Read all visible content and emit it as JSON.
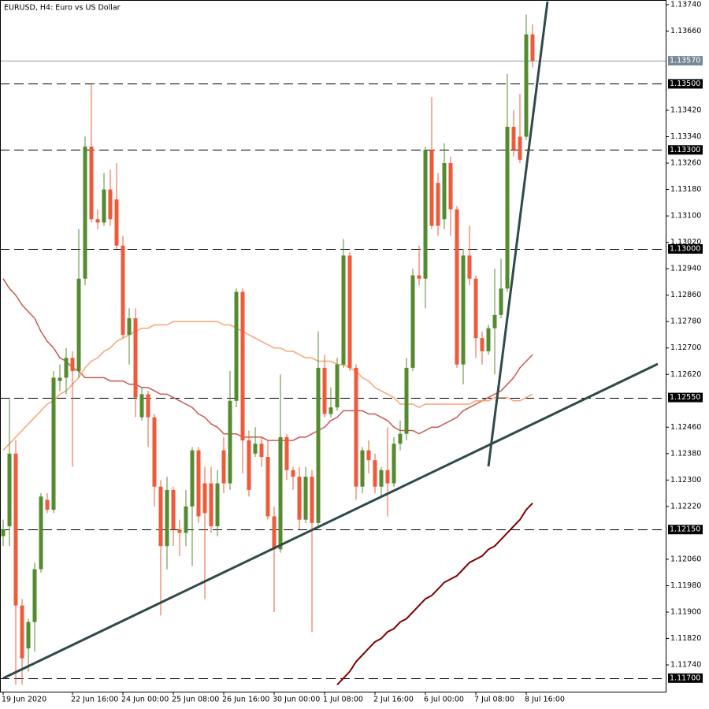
{
  "chart_data": {
    "type": "candlestick",
    "title": "EURUSD, H4:  Euro vs US Dollar",
    "categories": [
      "19 Jun 2020",
      null,
      null,
      null,
      null,
      null,
      null,
      null,
      null,
      null,
      null,
      "22 Jun 16:00",
      null,
      null,
      null,
      null,
      null,
      null,
      null,
      "24 Jun 00:00",
      null,
      null,
      null,
      null,
      null,
      null,
      null,
      "25 Jun 08:00",
      null,
      null,
      null,
      null,
      null,
      null,
      null,
      "26 Jun 16:00",
      null,
      null,
      null,
      null,
      null,
      null,
      null,
      "30 Jun 00:00",
      null,
      null,
      null,
      null,
      null,
      null,
      null,
      "1 Jul 08:00",
      null,
      null,
      null,
      null,
      null,
      null,
      null,
      "2 Jul 16:00",
      null,
      null,
      null,
      null,
      null,
      null,
      null,
      "6 Jul 00:00",
      null,
      null,
      null,
      null,
      null,
      null,
      null,
      "7 Jul 08:00",
      null,
      null,
      null,
      null,
      null,
      null,
      null,
      "8 Jul 16:00",
      null
    ],
    "open": [
      1.1213,
      1.1216,
      1.1238,
      1.1192,
      1.1179,
      1.1187,
      1.1203,
      1.1224,
      1.1221,
      1.126,
      1.1261,
      1.1267,
      1.1263,
      1.1291,
      1.1331,
      1.1309,
      1.1308,
      1.1318,
      1.1315,
      1.1301,
      1.1274,
      1.1279,
      1.1249,
      1.1256,
      1.1249,
      1.1228,
      1.121,
      1.1227,
      1.1215,
      1.1214,
      1.1222,
      1.1239,
      1.1229,
      1.1229,
      1.1216,
      1.1239,
      1.1229,
      1.1254,
      1.1287,
      1.1242,
      1.1238,
      1.1241,
      1.1237,
      1.1219,
      1.1209,
      1.1243,
      1.1233,
      1.1231,
      1.1218,
      1.1231,
      1.1217,
      1.1264,
      1.125,
      1.1252,
      1.1265,
      1.1298,
      1.1264,
      1.1228,
      1.1239,
      1.1236,
      1.1228,
      1.1233,
      1.1229,
      1.1241,
      1.1244,
      1.1264,
      1.1292,
      1.1291,
      1.133,
      1.132,
      1.1309,
      1.1326,
      1.1312,
      1.1265,
      1.1298,
      1.1291,
      1.1273,
      1.1269,
      1.1276,
      1.128,
      1.1288,
      1.1337,
      1.1334,
      1.1334,
      1.1365
    ],
    "high": [
      1.1218,
      1.1255,
      1.1242,
      1.1194,
      1.1188,
      1.1205,
      1.1226,
      1.1226,
      1.1263,
      1.1265,
      1.127,
      1.1269,
      1.1306,
      1.1334,
      1.135,
      1.1312,
      1.1323,
      1.1324,
      1.1326,
      1.1304,
      1.1282,
      1.1282,
      1.1258,
      1.1257,
      1.125,
      1.123,
      1.1231,
      1.1228,
      1.1218,
      1.1227,
      1.124,
      1.124,
      1.1234,
      1.1234,
      1.1233,
      1.1243,
      1.1263,
      1.1288,
      1.1288,
      1.1245,
      1.1246,
      1.1243,
      1.1242,
      1.1222,
      1.1262,
      1.1244,
      1.1234,
      1.1234,
      1.1234,
      1.1233,
      1.1275,
      1.1268,
      1.1258,
      1.1267,
      1.1303,
      1.1299,
      1.1265,
      1.124,
      1.1242,
      1.1238,
      1.1234,
      1.1246,
      1.1243,
      1.1248,
      1.1267,
      1.1294,
      1.1301,
      1.1331,
      1.1346,
      1.1323,
      1.1332,
      1.1328,
      1.1313,
      1.13,
      1.1307,
      1.1292,
      1.1275,
      1.1277,
      1.1294,
      1.1297,
      1.1353,
      1.1342,
      1.1347,
      1.1371,
      1.1368
    ],
    "low": [
      1.121,
      1.121,
      1.1168,
      1.1168,
      1.1172,
      1.1178,
      1.1202,
      1.122,
      1.122,
      1.1257,
      1.1256,
      1.1234,
      1.1261,
      1.1289,
      1.1308,
      1.1306,
      1.1307,
      1.1307,
      1.13,
      1.1273,
      1.1265,
      1.1249,
      1.1248,
      1.124,
      1.1222,
      1.1189,
      1.1203,
      1.121,
      1.1207,
      1.121,
      1.1204,
      1.1217,
      1.1194,
      1.1214,
      1.1213,
      1.1226,
      1.1227,
      1.1252,
      1.1232,
      1.1225,
      1.1237,
      1.1234,
      1.1218,
      1.119,
      1.1208,
      1.123,
      1.1227,
      1.1215,
      1.1217,
      1.1184,
      1.1216,
      1.1249,
      1.1249,
      1.1251,
      1.1264,
      1.1263,
      1.1224,
      1.1226,
      1.1232,
      1.1226,
      1.1225,
      1.1219,
      1.1228,
      1.1239,
      1.1242,
      1.1263,
      1.1289,
      1.1282,
      1.1306,
      1.1304,
      1.1306,
      1.1304,
      1.1264,
      1.1259,
      1.1289,
      1.1267,
      1.1265,
      1.1268,
      1.1262,
      1.1279,
      1.1287,
      1.1328,
      1.1326,
      1.1333,
      1.1355
    ],
    "close": [
      1.1215,
      1.1238,
      1.1192,
      1.1176,
      1.1187,
      1.1203,
      1.1225,
      1.1221,
      1.1261,
      1.1261,
      1.1267,
      1.1263,
      1.1291,
      1.1331,
      1.1309,
      1.1308,
      1.1318,
      1.1309,
      1.1301,
      1.1274,
      1.1279,
      1.1255,
      1.1256,
      1.1249,
      1.1228,
      1.121,
      1.1227,
      1.1215,
      1.1214,
      1.1222,
      1.1239,
      1.1219,
      1.122,
      1.1216,
      1.1229,
      1.1229,
      1.1254,
      1.1287,
      1.1242,
      1.1227,
      1.1241,
      1.1237,
      1.1219,
      1.1209,
      1.1243,
      1.1233,
      1.1231,
      1.1218,
      1.1231,
      1.1217,
      1.1264,
      1.125,
      1.1252,
      1.1265,
      1.1298,
      1.1264,
      1.1228,
      1.1239,
      1.1236,
      1.1228,
      1.1233,
      1.1229,
      1.1241,
      1.1244,
      1.1264,
      1.1292,
      1.1291,
      1.133,
      1.1307,
      1.1307,
      1.1326,
      1.1312,
      1.1265,
      1.1298,
      1.1291,
      1.1273,
      1.1269,
      1.1276,
      1.128,
      1.1288,
      1.1337,
      1.133,
      1.1327,
      1.1365,
      1.1357
    ],
    "up_color": "#558b2f",
    "down_color": "#ef5a3a",
    "lines": [
      {
        "color": "#c55a52",
        "values": [
          1.1291,
          1.1288,
          1.1286,
          1.1283,
          1.1281,
          1.1279,
          1.1275,
          1.1272,
          1.127,
          1.1267,
          1.1266,
          1.1264,
          1.1263,
          1.1261,
          1.1261,
          1.1261,
          1.1261,
          1.126,
          1.126,
          1.126,
          1.1259,
          1.1259,
          1.1258,
          1.1258,
          1.1257,
          1.1256,
          1.1256,
          1.1255,
          1.1254,
          1.1253,
          1.1252,
          1.125,
          1.1249,
          1.1247,
          1.1246,
          1.1244,
          1.1244,
          1.1244,
          1.1243,
          1.1243,
          1.1243,
          1.1243,
          1.1242,
          1.1242,
          1.1242,
          1.1242,
          1.1242,
          1.1243,
          1.1243,
          1.1244,
          1.1245,
          1.1246,
          1.1248,
          1.1249,
          1.1251,
          1.1251,
          1.1251,
          1.1251,
          1.125,
          1.125,
          1.1249,
          1.1248,
          1.1246,
          1.1245,
          1.1245,
          1.1245,
          1.1244,
          1.1245,
          1.1246,
          1.1246,
          1.1247,
          1.1248,
          1.1249,
          1.1251,
          1.1252,
          1.1253,
          1.1254,
          1.1255,
          1.1256,
          1.1257,
          1.1259,
          1.1261,
          1.1264,
          1.1266,
          1.1268
        ]
      },
      {
        "color": "#f7a475",
        "values": [
          1.1239,
          1.1241,
          1.1243,
          1.1245,
          1.1247,
          1.1249,
          1.1251,
          1.1253,
          1.1254,
          1.1256,
          1.1257,
          1.1259,
          1.1261,
          1.1264,
          1.1266,
          1.1267,
          1.1269,
          1.127,
          1.1272,
          1.1273,
          1.1274,
          1.1275,
          1.1276,
          1.1276,
          1.1277,
          1.1277,
          1.1277,
          1.1278,
          1.1278,
          1.1278,
          1.1278,
          1.1278,
          1.1278,
          1.1278,
          1.1278,
          1.1277,
          1.1277,
          1.1276,
          1.1275,
          1.1274,
          1.1273,
          1.1272,
          1.1271,
          1.127,
          1.127,
          1.1269,
          1.1269,
          1.1268,
          1.1267,
          1.1267,
          1.1266,
          1.1266,
          1.1266,
          1.1265,
          1.1265,
          1.1264,
          1.1263,
          1.1261,
          1.126,
          1.1258,
          1.1257,
          1.1256,
          1.1255,
          1.1253,
          1.1253,
          1.1253,
          1.1252,
          1.1253,
          1.1253,
          1.1253,
          1.1253,
          1.1253,
          1.1253,
          1.1253,
          1.1253,
          1.1254,
          1.1254,
          1.1254,
          1.1255,
          1.1255,
          1.1255,
          1.1254,
          1.1254,
          1.1255,
          1.1256
        ]
      },
      {
        "color": "#800000",
        "values": [
          null,
          null,
          null,
          null,
          null,
          null,
          null,
          null,
          null,
          null,
          null,
          null,
          null,
          null,
          null,
          null,
          null,
          null,
          null,
          null,
          null,
          null,
          null,
          null,
          null,
          null,
          null,
          null,
          null,
          null,
          null,
          null,
          null,
          null,
          null,
          null,
          null,
          null,
          null,
          null,
          null,
          null,
          null,
          null,
          null,
          null,
          null,
          null,
          null,
          null,
          null,
          null,
          null,
          1.1168,
          1.117,
          1.1172,
          1.1175,
          1.1177,
          1.1179,
          1.1181,
          1.1182,
          1.1184,
          1.1185,
          1.1187,
          1.1188,
          1.119,
          1.1192,
          1.1194,
          1.1195,
          1.1197,
          1.1199,
          1.12,
          1.1201,
          1.1203,
          1.1205,
          1.1206,
          1.1207,
          1.1209,
          1.121,
          1.1212,
          1.1214,
          1.1216,
          1.1218,
          1.1221,
          1.1223
        ]
      }
    ],
    "levels": [
      {
        "value": 1.135,
        "label": "1.13500"
      },
      {
        "value": 1.133,
        "label": "1.13300"
      },
      {
        "value": 1.13,
        "label": "1.13000"
      },
      {
        "value": 1.1255,
        "label": "1.12550"
      },
      {
        "value": 1.1215,
        "label": "1.12150"
      },
      {
        "value": 1.117,
        "label": "1.11700"
      }
    ],
    "last_price": {
      "value": 1.1357,
      "label": "1.13570"
    },
    "ylim": [
      1.11659,
      1.13754
    ],
    "yticks": [
      {
        "value": 1.1374,
        "label": "1.13740"
      },
      {
        "value": 1.1366,
        "label": "1.13660"
      },
      {
        "value": 1.1342,
        "label": "1.13420"
      },
      {
        "value": 1.1334,
        "label": "1.13340"
      },
      {
        "value": 1.1326,
        "label": "1.13260"
      },
      {
        "value": 1.1318,
        "label": "1.13180"
      },
      {
        "value": 1.131,
        "label": "1.13100"
      },
      {
        "value": 1.1302,
        "label": "1.13020"
      },
      {
        "value": 1.1294,
        "label": "1.12940"
      },
      {
        "value": 1.1286,
        "label": "1.12860"
      },
      {
        "value": 1.1278,
        "label": "1.12780"
      },
      {
        "value": 1.127,
        "label": "1.12700"
      },
      {
        "value": 1.1262,
        "label": "1.12620"
      },
      {
        "value": 1.1246,
        "label": "1.12460"
      },
      {
        "value": 1.1238,
        "label": "1.12380"
      },
      {
        "value": 1.123,
        "label": "1.12300"
      },
      {
        "value": 1.1222,
        "label": "1.12220"
      },
      {
        "value": 1.1206,
        "label": "1.12060"
      },
      {
        "value": 1.1198,
        "label": "1.11980"
      },
      {
        "value": 1.119,
        "label": "1.11900"
      },
      {
        "value": 1.1182,
        "label": "1.11820"
      },
      {
        "value": 1.1174,
        "label": "1.11740"
      }
    ],
    "grid": false
  }
}
